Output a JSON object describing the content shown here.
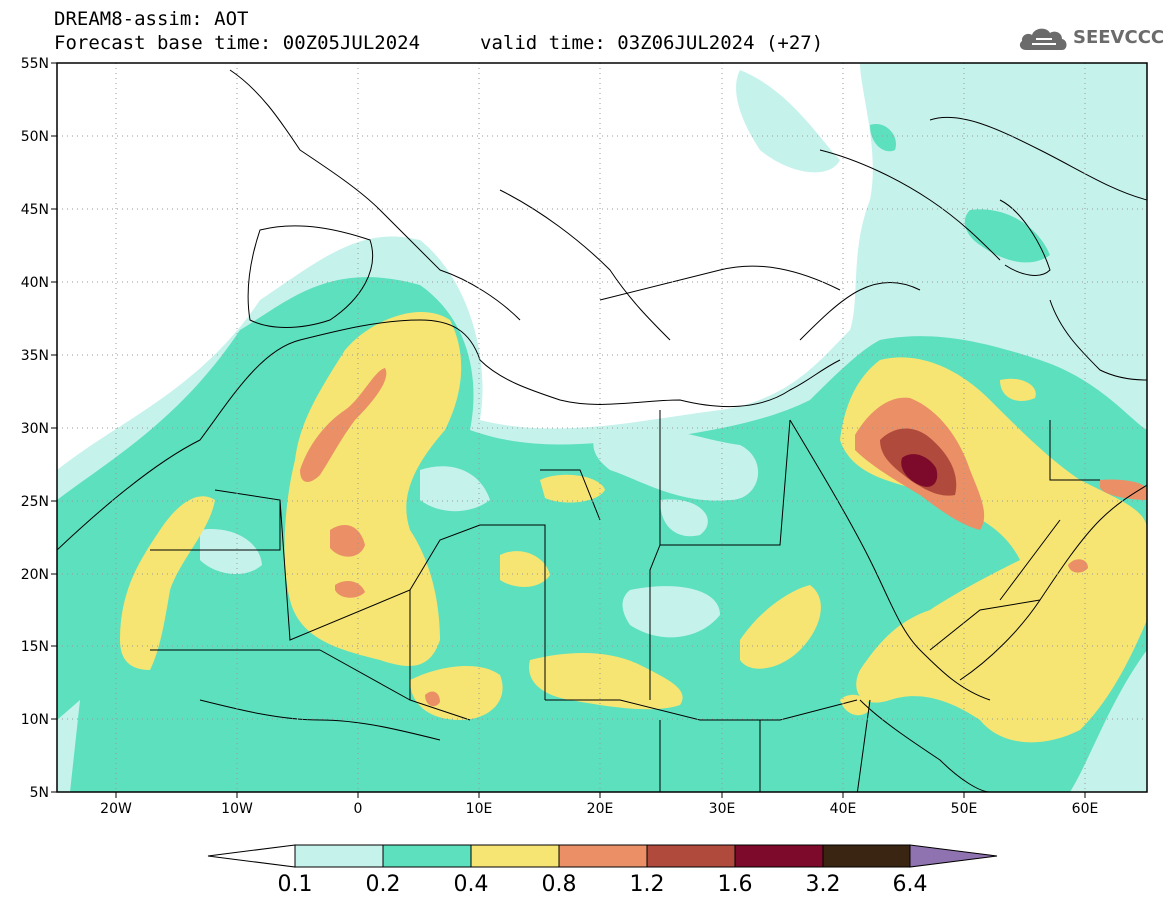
{
  "header": {
    "title": "DREAM8-assim: AOT",
    "base_time_label": "Forecast base time: 00Z05JUL2024",
    "valid_time_label": "valid time: 03Z06JUL2024 (+27)"
  },
  "logo": {
    "text": "SEEVCCC"
  },
  "map": {
    "lat_labels": [
      "55N",
      "50N",
      "45N",
      "40N",
      "35N",
      "30N",
      "25N",
      "20N",
      "15N",
      "10N",
      "5N"
    ],
    "lon_labels": [
      "20W",
      "10W",
      "0",
      "10E",
      "20E",
      "30E",
      "40E",
      "50E",
      "60E"
    ],
    "lon_range": [
      -25,
      65
    ],
    "lat_range": [
      5,
      55
    ],
    "field": "Aerosol Optical Thickness"
  },
  "colorbar": {
    "labels": [
      "0.1",
      "0.2",
      "0.4",
      "0.8",
      "1.2",
      "1.6",
      "3.2",
      "6.4"
    ],
    "colors": [
      "#c6f2ec",
      "#5de0be",
      "#f6e572",
      "#eb8f66",
      "#b04a3c",
      "#7d0a2a",
      "#3a2412",
      "#8f73b0"
    ],
    "extend": "both"
  }
}
